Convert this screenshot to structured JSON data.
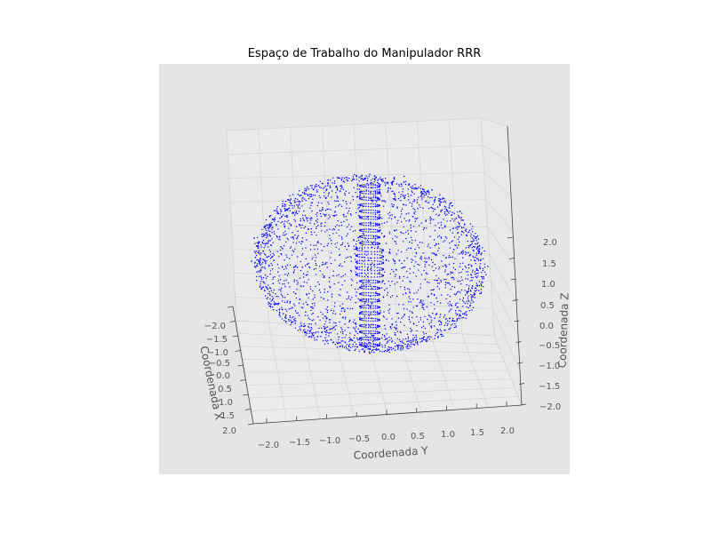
{
  "colors": {
    "figure_background": "#ffffff",
    "axes_background": "#e5e5e5",
    "pane_color": "#eaeaea",
    "grid_color": "#d6d6d6",
    "tick_text": "#555555",
    "title_text": "#000000",
    "points": "#0000ff"
  },
  "chart_data": {
    "type": "scatter",
    "projection": "3d",
    "title": "Espaço de Trabalho do Manipulador RRR",
    "xlabel": "Coordenada X",
    "ylabel": "Coordenada Y",
    "zlabel": "Coordenada Z",
    "xlim": [
      -2.0,
      2.0
    ],
    "ylim": [
      -2.0,
      2.0
    ],
    "zlim": [
      -2.0,
      2.0
    ],
    "xticks": [
      "−2.0",
      "−1.5",
      "−1.0",
      "−0.5",
      "0.0",
      "0.5",
      "1.0",
      "1.5",
      "2.0"
    ],
    "yticks": [
      "−2.0",
      "−1.5",
      "−1.0",
      "−0.5",
      "0.0",
      "0.5",
      "1.0",
      "1.5",
      "2.0"
    ],
    "zticks": [
      "−2.0",
      "−1.5",
      "−1.0",
      "−0.5",
      "0.0",
      "0.5",
      "1.0",
      "1.5",
      "2.0"
    ],
    "grid": true,
    "marker": "point",
    "series": [
      {
        "color": "#0000ff",
        "points": [
          [
            0.0,
            0.0,
            1.9
          ],
          [
            0.5,
            0.3,
            1.8
          ],
          [
            -0.4,
            0.6,
            1.8
          ],
          [
            1.0,
            0.0,
            1.6
          ],
          [
            0.0,
            1.0,
            1.6
          ],
          [
            -1.0,
            0.2,
            1.6
          ],
          [
            0.2,
            -1.0,
            1.6
          ],
          [
            1.4,
            0.5,
            1.1
          ],
          [
            -1.2,
            0.9,
            1.1
          ],
          [
            0.6,
            -1.4,
            1.1
          ],
          [
            1.8,
            0.2,
            0.4
          ],
          [
            -1.7,
            0.6,
            0.4
          ],
          [
            0.4,
            1.8,
            0.4
          ],
          [
            -0.5,
            -1.8,
            0.4
          ],
          [
            1.9,
            0.0,
            0.0
          ],
          [
            0.0,
            1.9,
            0.0
          ],
          [
            -1.9,
            0.0,
            0.0
          ],
          [
            0.0,
            -1.9,
            0.0
          ],
          [
            1.7,
            -0.8,
            -0.4
          ],
          [
            -1.6,
            -0.9,
            -0.4
          ],
          [
            1.2,
            1.2,
            -0.9
          ],
          [
            -1.1,
            1.2,
            -0.9
          ],
          [
            0.9,
            -0.6,
            -1.4
          ],
          [
            -0.6,
            -0.8,
            -1.4
          ],
          [
            0.3,
            0.2,
            -1.8
          ],
          [
            0.0,
            0.0,
            -1.9
          ],
          [
            0.1,
            0.0,
            0.9
          ],
          [
            0.1,
            0.0,
            0.0
          ],
          [
            0.1,
            0.0,
            -0.9
          ]
        ]
      }
    ]
  }
}
